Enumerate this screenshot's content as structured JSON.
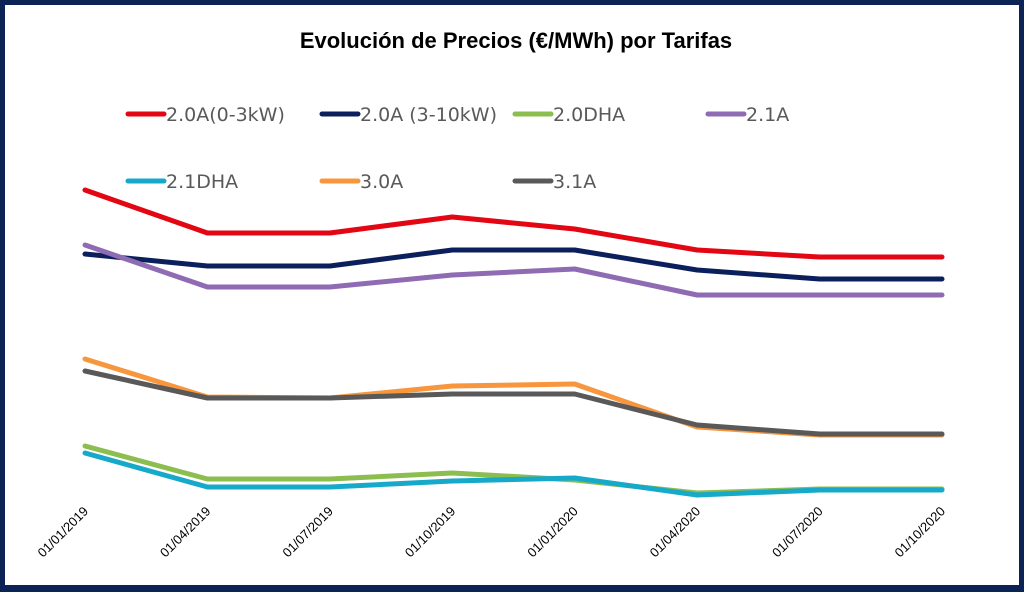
{
  "chart_data": {
    "type": "line",
    "title": "Evolución de Precios (€/MWh) por Tarifas",
    "xlabel": "",
    "ylabel": "",
    "x": [
      "01/01/2019",
      "01/04/2019",
      "01/07/2019",
      "01/10/2019",
      "01/01/2020",
      "01/04/2020",
      "01/07/2020",
      "01/10/2020"
    ],
    "ylim": [
      0,
      170
    ],
    "y_axis_visible": false,
    "grid": false,
    "legend_position": "top",
    "series": [
      {
        "name": "2.0A(0-3kW)",
        "color": "#e30613",
        "values": [
          165,
          143.5,
          143.5,
          151.5,
          145.5,
          135,
          131.5,
          131.5
        ]
      },
      {
        "name": "2.0A (3-10kW)",
        "color": "#0b1f5c",
        "values": [
          133,
          127,
          127,
          135,
          135,
          125,
          120.5,
          120.5
        ]
      },
      {
        "name": "2.0DHA",
        "color": "#8bbd4f",
        "values": [
          37,
          20.5,
          20.5,
          23.5,
          20,
          13.5,
          15.5,
          15.5
        ]
      },
      {
        "name": "2.1A",
        "color": "#8e6bb3",
        "values": [
          137.5,
          116.5,
          116.5,
          122.5,
          125.5,
          112.5,
          112.5,
          112.5
        ]
      },
      {
        "name": "2.1DHA",
        "color": "#17a9c9",
        "values": [
          33.5,
          16.5,
          16.5,
          19.5,
          21,
          12.5,
          15,
          15
        ]
      },
      {
        "name": "3.0A",
        "color": "#f7963d",
        "values": [
          80.5,
          61.5,
          61,
          67,
          68,
          46.5,
          42.5,
          42.5
        ]
      },
      {
        "name": "3.1A",
        "color": "#595959",
        "values": [
          74.5,
          61,
          61,
          63,
          63,
          47.5,
          43,
          43
        ]
      }
    ]
  },
  "frame_color": "#0b2355"
}
